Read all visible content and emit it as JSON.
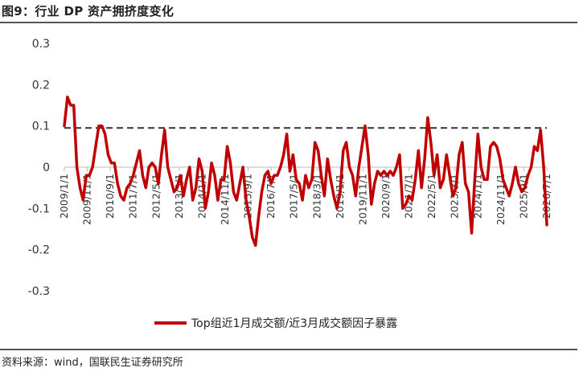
{
  "header": {
    "title": "图9：行业 DP 资产拥挤度变化"
  },
  "footer": {
    "source": "资料来源：wind，国联民生证券研究所"
  },
  "colors": {
    "series": "#c00000",
    "threshold": "#333333",
    "axis": "#bbbbbb"
  },
  "chart_data": {
    "type": "line",
    "title": "",
    "xlabel": "",
    "ylabel": "",
    "ylim": [
      -0.3,
      0.3
    ],
    "yticks": [
      "0.3",
      "0.2",
      "0.1",
      "0",
      "-0.1",
      "-0.2",
      "-0.3"
    ],
    "ytick_values": [
      0.3,
      0.2,
      0.1,
      0,
      -0.1,
      -0.2,
      -0.3
    ],
    "x_tick_labels": [
      "2009/1/1",
      "2009/11/1",
      "2010/9/1",
      "2011/7/1",
      "2012/5/1",
      "2013/3/1",
      "2014/1/1",
      "2014/11/1",
      "2015/9/1",
      "2016/7/1",
      "2017/5/1",
      "2018/3/1",
      "2019/1/1",
      "2019/11/1",
      "2020/9/1",
      "2021/7/1",
      "2022/5/1",
      "2023/3/1",
      "2024/1/1",
      "2024/11/1",
      "2025/9/1",
      "2026/7/1"
    ],
    "threshold": {
      "value": 0.095,
      "style": "dashed"
    },
    "legend": {
      "position": "bottom"
    },
    "series": [
      {
        "name": "Top组近1月成交额/近3月成交额因子暴露",
        "values": [
          0.1,
          0.17,
          0.15,
          0.15,
          0.0,
          -0.05,
          -0.08,
          -0.02,
          -0.02,
          0.0,
          0.05,
          0.1,
          0.1,
          0.08,
          0.03,
          0.01,
          0.01,
          -0.04,
          -0.07,
          -0.08,
          -0.05,
          -0.04,
          -0.02,
          0.01,
          0.04,
          -0.02,
          -0.05,
          0.0,
          0.01,
          0.0,
          -0.04,
          0.03,
          0.09,
          0.0,
          -0.03,
          -0.06,
          -0.05,
          -0.02,
          -0.07,
          -0.03,
          0.0,
          -0.08,
          -0.05,
          0.02,
          -0.01,
          -0.1,
          -0.06,
          0.01,
          -0.02,
          -0.08,
          -0.03,
          -0.03,
          0.05,
          0.01,
          -0.06,
          -0.08,
          -0.04,
          0.0,
          -0.08,
          -0.12,
          -0.17,
          -0.19,
          -0.12,
          -0.06,
          -0.02,
          -0.01,
          -0.04,
          -0.02,
          -0.02,
          0.0,
          0.03,
          0.08,
          -0.01,
          0.03,
          -0.03,
          -0.04,
          -0.08,
          -0.02,
          -0.05,
          -0.03,
          0.06,
          0.04,
          -0.02,
          -0.07,
          0.02,
          -0.03,
          -0.07,
          -0.1,
          -0.06,
          0.04,
          0.06,
          0.0,
          -0.02,
          -0.07,
          0.0,
          0.05,
          0.1,
          0.03,
          -0.09,
          -0.04,
          -0.01,
          -0.02,
          -0.01,
          -0.02,
          -0.01,
          -0.02,
          0.0,
          0.03,
          -0.1,
          -0.09,
          -0.07,
          -0.08,
          -0.03,
          0.04,
          -0.05,
          0.02,
          0.12,
          0.06,
          -0.02,
          0.03,
          -0.05,
          -0.03,
          0.03,
          -0.02,
          -0.07,
          -0.05,
          0.03,
          0.06,
          -0.04,
          -0.06,
          -0.16,
          -0.03,
          0.08,
          0.0,
          -0.03,
          -0.03,
          0.05,
          0.06,
          0.05,
          0.02,
          -0.03,
          -0.05,
          -0.07,
          -0.04,
          0.0,
          -0.04,
          -0.06,
          -0.05,
          -0.02,
          0.0,
          0.05,
          0.04,
          0.09,
          0.0,
          -0.14
        ]
      }
    ]
  }
}
